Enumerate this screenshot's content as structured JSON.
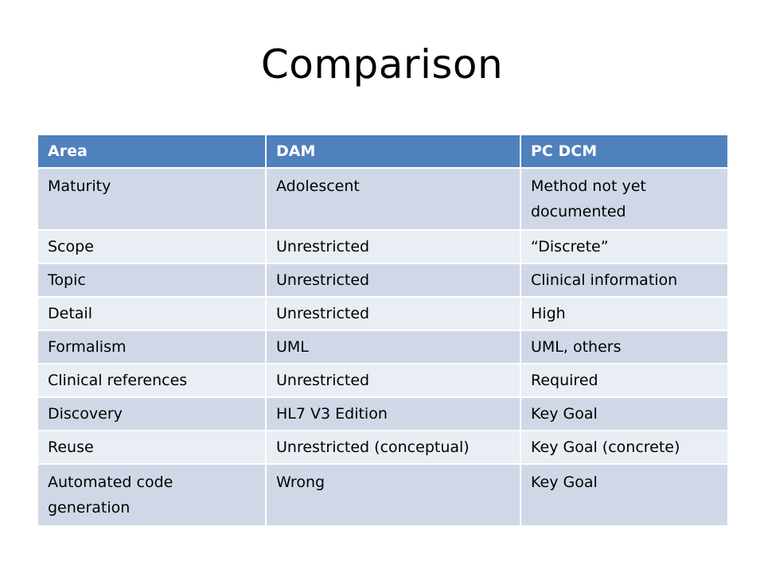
{
  "title": "Comparison",
  "table": {
    "headers": [
      "Area",
      "DAM",
      "PC DCM"
    ],
    "rows": [
      [
        "Maturity",
        "Adolescent",
        "Method not yet documented"
      ],
      [
        "Scope",
        "Unrestricted",
        "“Discrete”"
      ],
      [
        "Topic",
        "Unrestricted",
        "Clinical information"
      ],
      [
        "Detail",
        "Unrestricted",
        "High"
      ],
      [
        "Formalism",
        "UML",
        "UML, others"
      ],
      [
        "Clinical references",
        "Unrestricted",
        "Required"
      ],
      [
        "Discovery",
        "HL7 V3 Edition",
        "Key Goal"
      ],
      [
        "Reuse",
        "Unrestricted (conceptual)",
        "Key Goal (concrete)"
      ],
      [
        "Automated code generation",
        "Wrong",
        "Key Goal"
      ]
    ]
  },
  "colors": {
    "header_bg": "#4f81bd",
    "row_odd_bg": "#d0d8e8",
    "row_even_bg": "#e9edf4"
  }
}
